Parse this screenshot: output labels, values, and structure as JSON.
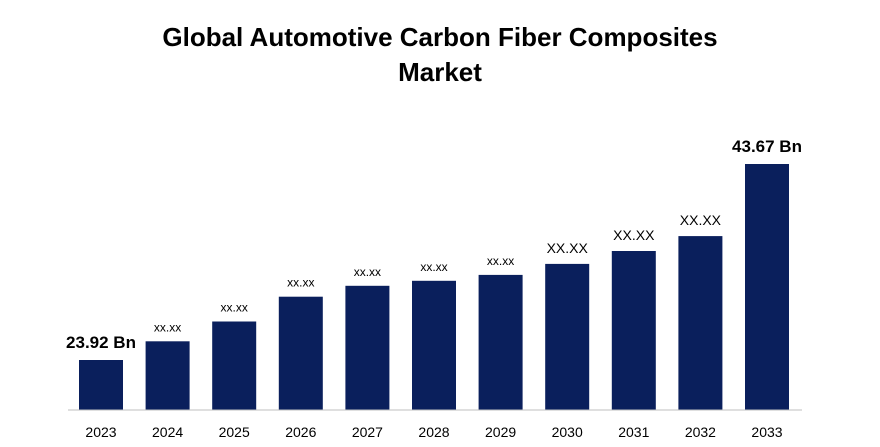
{
  "chart_data": {
    "type": "bar",
    "title_line1": "Global Automotive Carbon Fiber Composites",
    "title_line2": "Market",
    "categories": [
      "2023",
      "2024",
      "2025",
      "2026",
      "2027",
      "2028",
      "2029",
      "2030",
      "2031",
      "2032",
      "2033"
    ],
    "values": [
      23.92,
      25.8,
      27.8,
      30.3,
      31.4,
      31.9,
      32.5,
      33.6,
      34.9,
      36.4,
      43.67
    ],
    "data_labels": [
      "23.92 Bn",
      "xx.xx",
      "xx.xx",
      "xx.xx",
      "xx.xx",
      "xx.xx",
      "xx.xx",
      "XX.XX",
      "XX.XX",
      "XX.XX",
      "43.67 Bn"
    ],
    "ylim": [
      20,
      45
    ],
    "bar_color": "#0a1f5c",
    "axis_color": "#bfbfbf",
    "grid": false,
    "legend": "none"
  }
}
